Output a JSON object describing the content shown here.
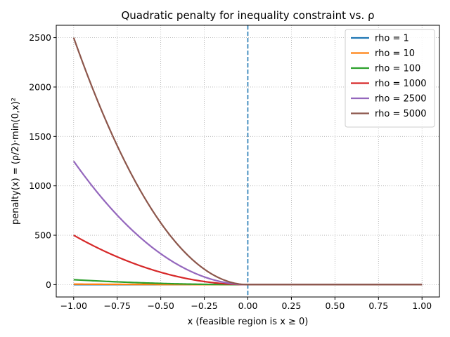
{
  "chart_data": {
    "type": "line",
    "title": "Quadratic penalty for inequality constraint vs. ρ",
    "xlabel": "x (feasible region is x ≥ 0)",
    "ylabel": "penalty(x) = (ρ/2)·min(0,x)²",
    "xlim": [
      -1.1,
      1.1
    ],
    "ylim": [
      -125,
      2625
    ],
    "x_ticks": [
      -1.0,
      -0.75,
      -0.5,
      -0.25,
      0.0,
      0.25,
      0.5,
      0.75,
      1.0
    ],
    "x_tick_labels": [
      "−1.00",
      "−0.75",
      "−0.50",
      "−0.25",
      "0.00",
      "0.25",
      "0.50",
      "0.75",
      "1.00"
    ],
    "y_ticks": [
      0,
      500,
      1000,
      1500,
      2000,
      2500
    ],
    "y_tick_labels": [
      "0",
      "500",
      "1000",
      "1500",
      "2000",
      "2500"
    ],
    "x_range": [
      -1,
      1
    ],
    "function": "(rho/2) * min(0, x)^2",
    "grid": true,
    "legend_position": "top-right",
    "vline": {
      "x": 0,
      "style": "dashed",
      "color": "#1f77b4"
    },
    "series": [
      {
        "name": "rho = 1",
        "rho": 1,
        "color": "#1f77b4"
      },
      {
        "name": "rho = 10",
        "rho": 10,
        "color": "#ff7f0e"
      },
      {
        "name": "rho = 100",
        "rho": 100,
        "color": "#2ca02c"
      },
      {
        "name": "rho = 1000",
        "rho": 1000,
        "color": "#d62728"
      },
      {
        "name": "rho = 2500",
        "rho": 2500,
        "color": "#9467bd"
      },
      {
        "name": "rho = 5000",
        "rho": 5000,
        "color": "#8c564b"
      }
    ]
  }
}
